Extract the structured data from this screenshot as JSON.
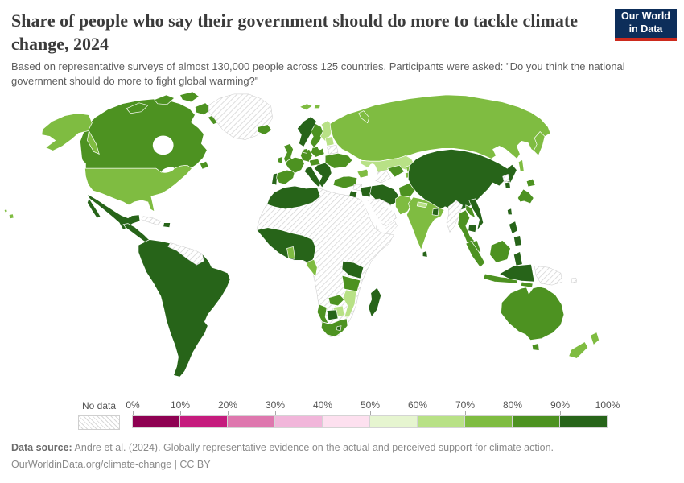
{
  "header": {
    "title": "Share of people who say their government should do more to tackle climate change, 2024",
    "subtitle": "Based on representative surveys of almost 130,000 people across 125 countries. Participants were asked: \"Do you think the national government should do more to fight global warming?\"",
    "logo": {
      "line1": "Our World",
      "line2": "in Data",
      "bg_color": "#0d2e5a",
      "accent_color": "#cc2a1d"
    }
  },
  "legend": {
    "no_data_label": "No data",
    "ticks": [
      "0%",
      "10%",
      "20%",
      "30%",
      "40%",
      "50%",
      "60%",
      "70%",
      "80%",
      "90%",
      "100%"
    ],
    "bin_colors": [
      "#8e0152",
      "#c51b7d",
      "#de77ae",
      "#f1b6da",
      "#fde0ef",
      "#e6f5d0",
      "#b8e186",
      "#7fbc41",
      "#4d9221",
      "#276419"
    ]
  },
  "chart_data": {
    "type": "choropleth_map",
    "title": "Share of people who say their government should do more to tackle climate change, 2024",
    "year": "2024",
    "unit": "% of surveyed people",
    "projection": "world",
    "legend_position": "bottom",
    "range_colors": {
      "0-10%": "#8e0152",
      "10-20%": "#c51b7d",
      "20-30%": "#de77ae",
      "30-40%": "#f1b6da",
      "40-50%": "#fde0ef",
      "50-60%": "#e6f5d0",
      "60-70%": "#b8e186",
      "70-80%": "#7fbc41",
      "80-90%": "#4d9221",
      "90-100%": "#276419",
      "No data": "hatch"
    },
    "countries": [
      {
        "name": "United States",
        "range": "70-80%"
      },
      {
        "name": "Canada",
        "range": "80-90%"
      },
      {
        "name": "Greenland",
        "range": "No data"
      },
      {
        "name": "Mexico",
        "range": "90-100%"
      },
      {
        "name": "Central America",
        "range": "90-100%"
      },
      {
        "name": "Cuba",
        "range": "No data"
      },
      {
        "name": "Hispaniola",
        "range": "90-100%"
      },
      {
        "name": "South America",
        "range": "90-100%"
      },
      {
        "name": "Venezuela & Guianas",
        "range": "No data"
      },
      {
        "name": "Iceland",
        "range": "80-90%"
      },
      {
        "name": "United Kingdom",
        "range": "80-90%"
      },
      {
        "name": "Ireland",
        "range": "80-90%"
      },
      {
        "name": "Portugal",
        "range": "90-100%"
      },
      {
        "name": "Spain",
        "range": "80-90%"
      },
      {
        "name": "France",
        "range": "80-90%"
      },
      {
        "name": "Germany",
        "range": "80-90%"
      },
      {
        "name": "Central Europe",
        "range": "80-90%"
      },
      {
        "name": "Poland",
        "range": "80-90%"
      },
      {
        "name": "Italy",
        "range": "90-100%"
      },
      {
        "name": "Balkans & Greece",
        "range": "90-100%"
      },
      {
        "name": "Norway",
        "range": "90-100%"
      },
      {
        "name": "Sweden",
        "range": "80-90%"
      },
      {
        "name": "Denmark",
        "range": "80-90%"
      },
      {
        "name": "Finland",
        "range": "60-70%"
      },
      {
        "name": "Baltic states",
        "range": "60-70%"
      },
      {
        "name": "Belarus",
        "range": "No data"
      },
      {
        "name": "Ukraine",
        "range": "80-90%"
      },
      {
        "name": "Russia",
        "range": "70-80%"
      },
      {
        "name": "Svalbard",
        "range": "70-80%"
      },
      {
        "name": "Kazakhstan",
        "range": "60-70%"
      },
      {
        "name": "Caucasus",
        "range": "70-80%"
      },
      {
        "name": "Turkey",
        "range": "80-90%"
      },
      {
        "name": "Syria",
        "range": "No data"
      },
      {
        "name": "Israel & Jordan",
        "range": "90-100%"
      },
      {
        "name": "Iraq",
        "range": "90-100%"
      },
      {
        "name": "Iran",
        "range": "90-100%"
      },
      {
        "name": "Saudi Arabia",
        "range": "No data"
      },
      {
        "name": "Yemen & Oman",
        "range": "No data"
      },
      {
        "name": "Turkmenistan",
        "range": "No data"
      },
      {
        "name": "Uzbekistan",
        "range": "80-90%"
      },
      {
        "name": "Kyrgyzstan",
        "range": "70-80%"
      },
      {
        "name": "Tajikistan",
        "range": "70-80%"
      },
      {
        "name": "Afghanistan",
        "range": "80-90%"
      },
      {
        "name": "Pakistan",
        "range": "70-80%"
      },
      {
        "name": "India",
        "range": "70-80%"
      },
      {
        "name": "Nepal",
        "range": "60-70%"
      },
      {
        "name": "Bangladesh",
        "range": "90-100%"
      },
      {
        "name": "Sri Lanka",
        "range": "90-100%"
      },
      {
        "name": "China & Mongolia",
        "range": "90-100%"
      },
      {
        "name": "North Korea",
        "range": "No data"
      },
      {
        "name": "South Korea",
        "range": "90-100%"
      },
      {
        "name": "Taiwan",
        "range": "90-100%"
      },
      {
        "name": "Japan",
        "range": "80-90%"
      },
      {
        "name": "Myanmar",
        "range": "No data"
      },
      {
        "name": "Thailand",
        "range": "80-90%"
      },
      {
        "name": "Laos",
        "range": "80-90%"
      },
      {
        "name": "Vietnam",
        "range": "90-100%"
      },
      {
        "name": "Cambodia",
        "range": "90-100%"
      },
      {
        "name": "Malaysia",
        "range": "80-90%"
      },
      {
        "name": "Indonesia",
        "range": "80-90%"
      },
      {
        "name": "Sulawesi (Indonesia)",
        "range": "90-100%"
      },
      {
        "name": "Papua (Indonesia)",
        "range": "90-100%"
      },
      {
        "name": "Philippines",
        "range": "90-100%"
      },
      {
        "name": "Papua New Guinea",
        "range": "No data"
      },
      {
        "name": "Solomon Islands",
        "range": "No data"
      },
      {
        "name": "Australia",
        "range": "80-90%"
      },
      {
        "name": "New Zealand",
        "range": "70-80%"
      },
      {
        "name": "Northern & Central Africa",
        "range": "No data"
      },
      {
        "name": "Northwest Africa",
        "range": "90-100%"
      },
      {
        "name": "West Africa",
        "range": "90-100%"
      },
      {
        "name": "Ghana",
        "range": "70-80%"
      },
      {
        "name": "Gabon & Congo",
        "range": "70-80%"
      },
      {
        "name": "Kenya & Uganda",
        "range": "90-100%"
      },
      {
        "name": "Tanzania",
        "range": "80-90%"
      },
      {
        "name": "Zambia",
        "range": "80-90%"
      },
      {
        "name": "Malawi",
        "range": "70-80%"
      },
      {
        "name": "Mozambique",
        "range": "60-70%"
      },
      {
        "name": "Zimbabwe",
        "range": "60-70%"
      },
      {
        "name": "Namibia",
        "range": "80-90%"
      },
      {
        "name": "Botswana",
        "range": "90-100%"
      },
      {
        "name": "South Africa",
        "range": "80-90%"
      },
      {
        "name": "Lesotho",
        "range": "90-100%"
      },
      {
        "name": "Madagascar",
        "range": "90-100%"
      }
    ]
  },
  "footer": {
    "data_source_label": "Data source:",
    "data_source_text": "Andre et al. (2024). Globally representative evidence on the actual and perceived support for climate action.",
    "license_line": "OurWorldinData.org/climate-change | CC BY"
  }
}
